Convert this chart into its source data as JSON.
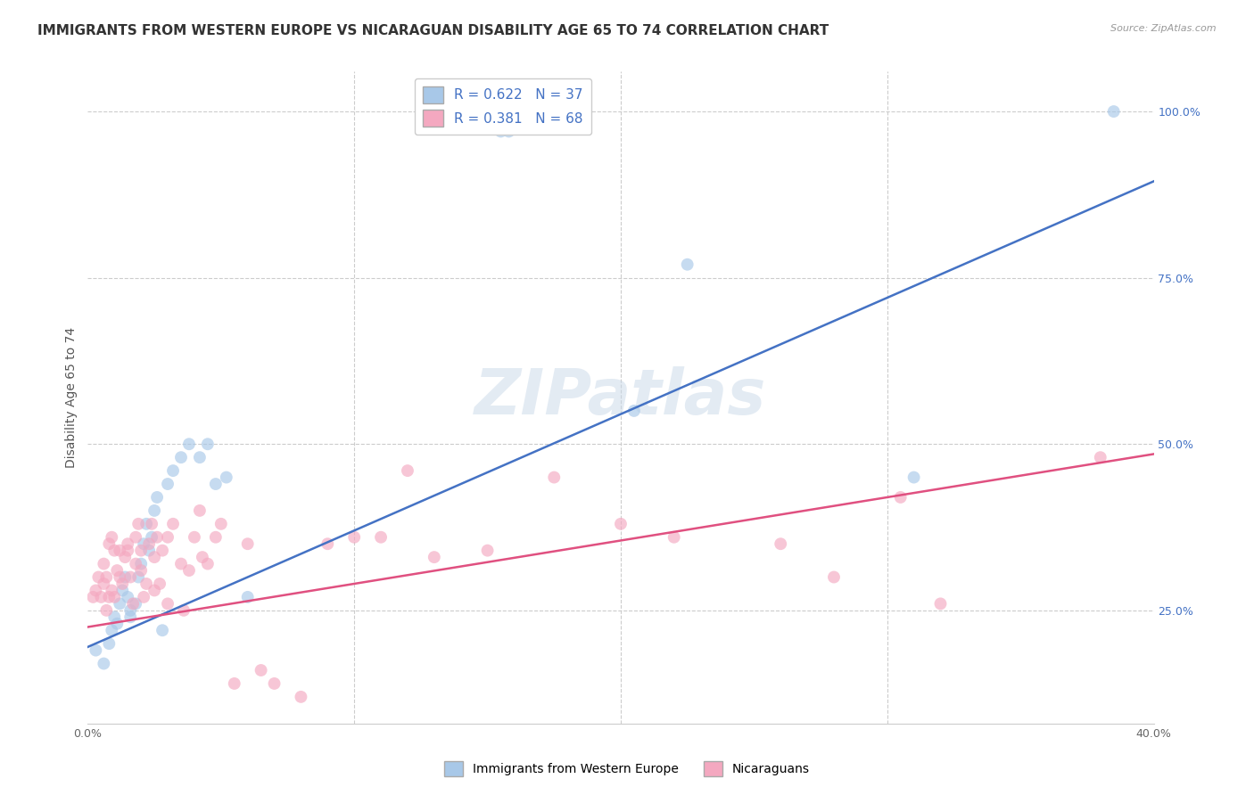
{
  "title": "IMMIGRANTS FROM WESTERN EUROPE VS NICARAGUAN DISABILITY AGE 65 TO 74 CORRELATION CHART",
  "source": "Source: ZipAtlas.com",
  "ylabel": "Disability Age 65 to 74",
  "xlim": [
    0.0,
    0.4
  ],
  "ylim": [
    0.08,
    1.06
  ],
  "xticks": [
    0.0,
    0.1,
    0.2,
    0.3,
    0.4
  ],
  "xticklabels": [
    "0.0%",
    "",
    "",
    "",
    "40.0%"
  ],
  "yticks": [
    0.25,
    0.5,
    0.75,
    1.0
  ],
  "yticklabels": [
    "25.0%",
    "50.0%",
    "75.0%",
    "100.0%"
  ],
  "blue_R": 0.622,
  "blue_N": 37,
  "pink_R": 0.381,
  "pink_N": 68,
  "blue_color": "#a8c8e8",
  "pink_color": "#f4a8c0",
  "blue_line_color": "#4472c4",
  "pink_line_color": "#e05080",
  "legend_label_blue": "Immigrants from Western Europe",
  "legend_label_pink": "Nicaraguans",
  "blue_scatter_x": [
    0.003,
    0.006,
    0.008,
    0.009,
    0.01,
    0.011,
    0.012,
    0.013,
    0.014,
    0.015,
    0.016,
    0.016,
    0.018,
    0.019,
    0.02,
    0.021,
    0.022,
    0.023,
    0.024,
    0.025,
    0.026,
    0.028,
    0.03,
    0.032,
    0.035,
    0.038,
    0.042,
    0.045,
    0.048,
    0.052,
    0.06,
    0.155,
    0.158,
    0.205,
    0.225,
    0.31,
    0.385
  ],
  "blue_scatter_y": [
    0.19,
    0.17,
    0.2,
    0.22,
    0.24,
    0.23,
    0.26,
    0.28,
    0.3,
    0.27,
    0.25,
    0.24,
    0.26,
    0.3,
    0.32,
    0.35,
    0.38,
    0.34,
    0.36,
    0.4,
    0.42,
    0.22,
    0.44,
    0.46,
    0.48,
    0.5,
    0.48,
    0.5,
    0.44,
    0.45,
    0.27,
    0.97,
    0.97,
    0.55,
    0.77,
    0.45,
    1.0
  ],
  "pink_scatter_x": [
    0.002,
    0.003,
    0.004,
    0.005,
    0.006,
    0.006,
    0.007,
    0.007,
    0.008,
    0.008,
    0.009,
    0.009,
    0.01,
    0.01,
    0.011,
    0.012,
    0.012,
    0.013,
    0.014,
    0.015,
    0.015,
    0.016,
    0.017,
    0.018,
    0.018,
    0.019,
    0.02,
    0.02,
    0.021,
    0.022,
    0.023,
    0.024,
    0.025,
    0.025,
    0.026,
    0.027,
    0.028,
    0.03,
    0.03,
    0.032,
    0.035,
    0.036,
    0.038,
    0.04,
    0.042,
    0.043,
    0.045,
    0.048,
    0.05,
    0.055,
    0.06,
    0.065,
    0.07,
    0.08,
    0.09,
    0.1,
    0.11,
    0.12,
    0.13,
    0.15,
    0.175,
    0.2,
    0.22,
    0.26,
    0.28,
    0.305,
    0.32,
    0.38
  ],
  "pink_scatter_y": [
    0.27,
    0.28,
    0.3,
    0.27,
    0.29,
    0.32,
    0.3,
    0.25,
    0.27,
    0.35,
    0.28,
    0.36,
    0.27,
    0.34,
    0.31,
    0.34,
    0.3,
    0.29,
    0.33,
    0.35,
    0.34,
    0.3,
    0.26,
    0.32,
    0.36,
    0.38,
    0.34,
    0.31,
    0.27,
    0.29,
    0.35,
    0.38,
    0.33,
    0.28,
    0.36,
    0.29,
    0.34,
    0.36,
    0.26,
    0.38,
    0.32,
    0.25,
    0.31,
    0.36,
    0.4,
    0.33,
    0.32,
    0.36,
    0.38,
    0.14,
    0.35,
    0.16,
    0.14,
    0.12,
    0.35,
    0.36,
    0.36,
    0.46,
    0.33,
    0.34,
    0.45,
    0.38,
    0.36,
    0.35,
    0.3,
    0.42,
    0.26,
    0.48
  ],
  "blue_line_x0": 0.0,
  "blue_line_x1": 0.4,
  "blue_line_y0": 0.195,
  "blue_line_y1": 0.895,
  "pink_line_x0": 0.0,
  "pink_line_x1": 0.4,
  "pink_line_y0": 0.225,
  "pink_line_y1": 0.485,
  "background_color": "#ffffff",
  "grid_color": "#cccccc",
  "title_fontsize": 11,
  "axis_label_fontsize": 10,
  "tick_fontsize": 9,
  "scatter_size": 100,
  "scatter_alpha": 0.65,
  "line_width": 1.8,
  "watermark_text": "ZIPatlas",
  "watermark_color": "#c8d8e8",
  "watermark_alpha": 0.5
}
